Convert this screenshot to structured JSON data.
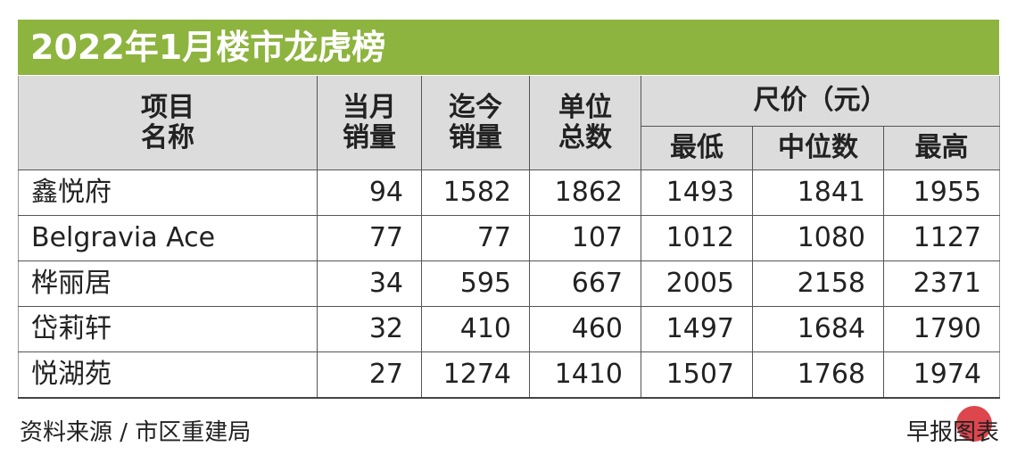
{
  "title": "2022年1月楼市龙虎榜",
  "table": {
    "columns": [
      [
        "项目",
        "名称"
      ],
      [
        "当月",
        "销量"
      ],
      [
        "迄今",
        "销量"
      ],
      [
        "单位",
        "总数"
      ]
    ],
    "price_group": "尺价（元）",
    "price_columns": [
      "最低",
      "中位数",
      "最高"
    ],
    "rows": [
      [
        "鑫悦府",
        94,
        1582,
        1862,
        1493,
        1841,
        1955
      ],
      [
        "Belgravia Ace",
        77,
        77,
        107,
        1012,
        1080,
        1127
      ],
      [
        "桦丽居",
        34,
        595,
        667,
        2005,
        2158,
        2371
      ],
      [
        "岱莉轩",
        32,
        410,
        460,
        1497,
        1684,
        1790
      ],
      [
        "悦湖苑",
        27,
        1274,
        1410,
        1507,
        1768,
        1974
      ]
    ]
  },
  "source": "资料来源 / 市区重建局",
  "credit": "早报图表"
}
